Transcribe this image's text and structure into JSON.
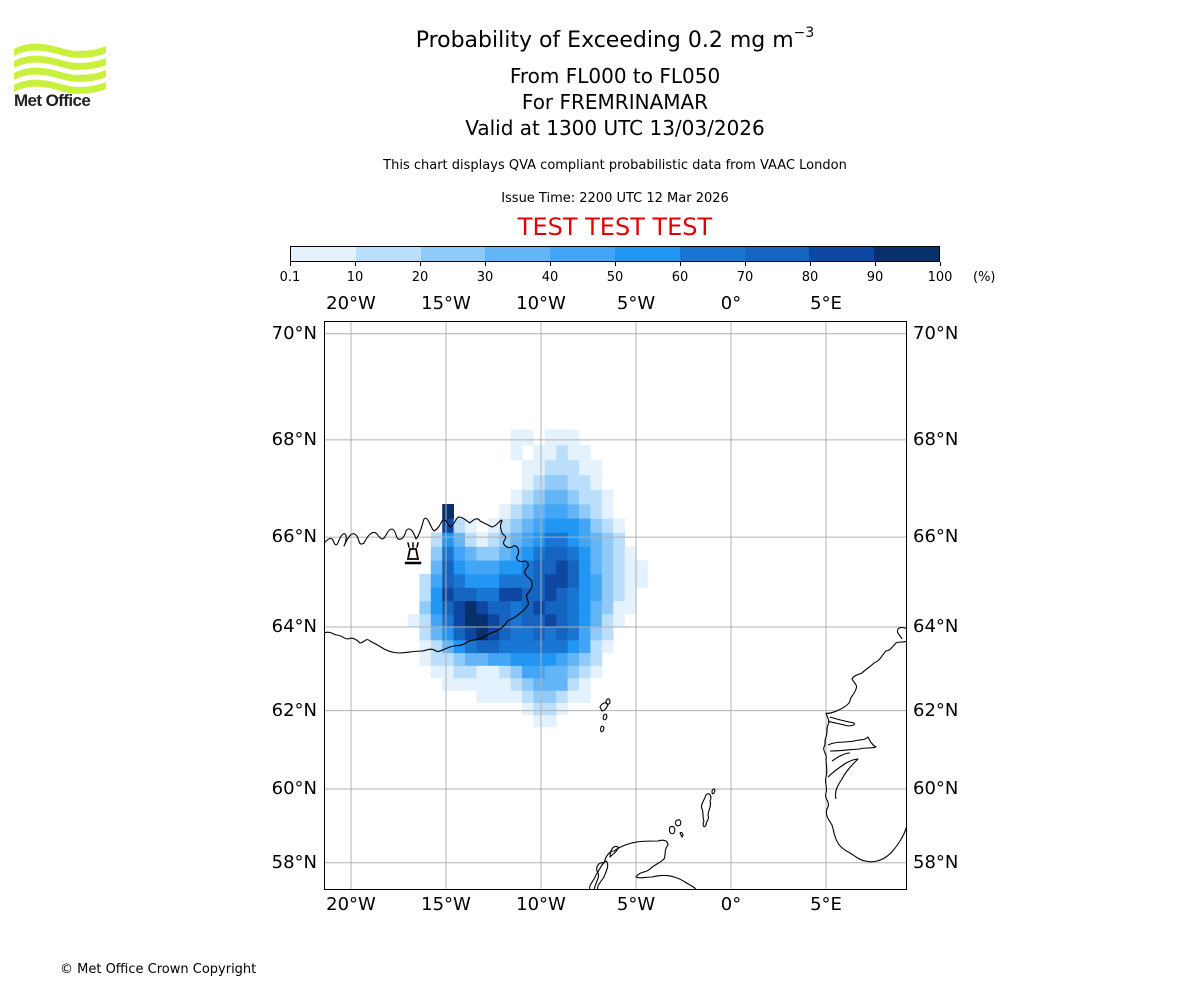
{
  "logo": {
    "text": "Met Office",
    "colors": {
      "wave": "#c8f03c"
    }
  },
  "title": {
    "main": "Probability of Exceeding 0.2 mg m",
    "main_superscript": "−3",
    "levels": "From FL000 to FL050",
    "volcano": "For FREMRINAMAR",
    "valid": "Valid at 1300 UTC 13/03/2026",
    "description": "This chart displays QVA compliant probabilistic data from VAAC London",
    "issue_time": "Issue Time: 2200 UTC 12 Mar 2026",
    "test_banner": "TEST TEST TEST"
  },
  "colorbar": {
    "unit": "(%)",
    "ticks": [
      "0.1",
      "10",
      "20",
      "30",
      "40",
      "50",
      "60",
      "70",
      "80",
      "90",
      "100"
    ],
    "colors": [
      "#e3f2fd",
      "#bbdefb",
      "#90caf9",
      "#64b5f6",
      "#42a5f5",
      "#2196f3",
      "#1976d2",
      "#1565c0",
      "#0d47a1",
      "#08306b"
    ]
  },
  "axes": {
    "lon_labels": [
      "20°W",
      "15°W",
      "10°W",
      "5°W",
      "0°",
      "5°E"
    ],
    "lon_values": [
      -20,
      -15,
      -10,
      -5,
      0,
      5
    ],
    "lat_labels": [
      "70°N",
      "68°N",
      "66°N",
      "64°N",
      "62°N",
      "60°N",
      "58°N"
    ],
    "lat_values": [
      70,
      68,
      66,
      64,
      62,
      60,
      58
    ],
    "lon_range": [
      -21.4,
      9.2
    ],
    "lat_range": [
      57.4,
      70.3
    ]
  },
  "map_data": {
    "type": "heatmap",
    "volcano_symbol": "volcano-icon",
    "volcano_location": {
      "lon": -16.6,
      "lat": 65.4
    },
    "cell_lon_step": 0.6,
    "cell_lat_step": 0.3,
    "grid_origin": {
      "lon": -17.0,
      "lat": 61.6
    },
    "rows_note": "rows from south to north; each value is a colour class index 0-9, -1 = none",
    "rows": [
      "-1 -1 -1 -1 -1 -1 -1 -1 -1 -1 -1  0  0 -1 -1 -1 -1 -1 -1 -1 -1 -1 -1 -1 -1 -1",
      "-1 -1 -1 -1 -1 -1 -1 -1 -1 -1  0  1  1  0 -1 -1 -1 -1 -1 -1 -1 -1 -1 -1 -1 -1",
      "-1 -1 -1 -1 -1 -1  0  0  0  0  1  2  2  1  0  0 -1 -1 -1 -1 -1 -1 -1 -1 -1 -1",
      "-1 -1 -1  0  0  0  0  0  0  1  2  3  3  3  1  0 -1 -1 -1 -1 -1 -1 -1 -1 -1 -1",
      "-1 -1  0  0  1  1  0  0  1  2  4  4  3  3  2  1  0 -1 -1 -1 -1 -1 -1 -1 -1 -1",
      "-1  0  1  1  2  3  3  4  4  5  5  5  5  4  3  2  1 -1 -1 -1 -1 -1 -1 -1 -1 -1",
      "-1  0  1  3  5  6  7  7  6  6  6  6  6  6  5  4  1  0 -1 -1 -1 -1 -1 -1 -1 -1",
      "-1  1  3  5  7  8  9  8  7  6  6  7  6  7  6  4  2  1 -1 -1 -1 -1 -1 -1 -1 -1",
      " 0  1  4  6  8  9  9  8  7  6  7  7  8  7  6  5  3  1  0 -1 -1 -1 -1 -1 -1 -1",
      "-1  2  5  7  8  9  8  7  7  6  7  8  7  7  6  5  3  2  0  0 -1 -1 -1 -1 -1 -1",
      "-1  1  5  8  7  7  6  6  8  8  7  7  8  7  6  5  4  2  1  0 -1 -1 -1 -1 -1 -1",
      "-1  1  4  7  6  5  5  5  6  6  6  7  8  8  7  5  4  2  1  0  0 -1 -1 -1 -1 -1",
      "-1 -1  3  7  5  4  4  4  5  5  6  7  7  8  7  5  3  2  1  0  0 -1 -1 -1 -1 -1",
      "-1 -1  2  6  4  3  2  2  3  4  5  6  7  7  6  5  3  2  1  0 -1 -1 -1 -1 -1 -1",
      "-1 -1  1  5  3  1  0  1  2  3  4  5  6  6  5  4  3  2  1 -1 -1 -1 -1 -1 -1 -1",
      "-1 -1 -1  8  1  0 -1  0  1  2  3  4  5  5  5  4  2  1  0 -1 -1 -1 -1 -1 -1 -1",
      "-1 -1 -1  9 -1 -1 -1 -1  0  1  2  3  4  4  3  2  1  0 -1 -1 -1 -1 -1 -1 -1 -1",
      "-1 -1 -1 -1 -1 -1 -1 -1 -1  0  1  2  3  3  2  1  1  0 -1 -1 -1 -1 -1 -1 -1 -1",
      "-1 -1 -1 -1 -1 -1 -1 -1 -1 -1  0  1  2  2  1  1  0 -1 -1 -1 -1 -1 -1 -1 -1 -1",
      "-1 -1 -1 -1 -1 -1 -1 -1 -1 -1  0  0  1  1  1  0  0 -1 -1 -1 -1 -1 -1 -1 -1 -1",
      "-1 -1 -1 -1 -1 -1 -1 -1 -1  0 -1  0  0  1  0  0 -1 -1 -1 -1 -1 -1 -1 -1 -1 -1",
      "-1 -1 -1 -1 -1 -1 -1 -1 -1  0  0 -1  0  0  0 -1 -1 -1 -1 -1 -1 -1 -1 -1 -1 -1"
    ]
  },
  "footer": {
    "copyright": "© Met Office Crown Copyright"
  }
}
